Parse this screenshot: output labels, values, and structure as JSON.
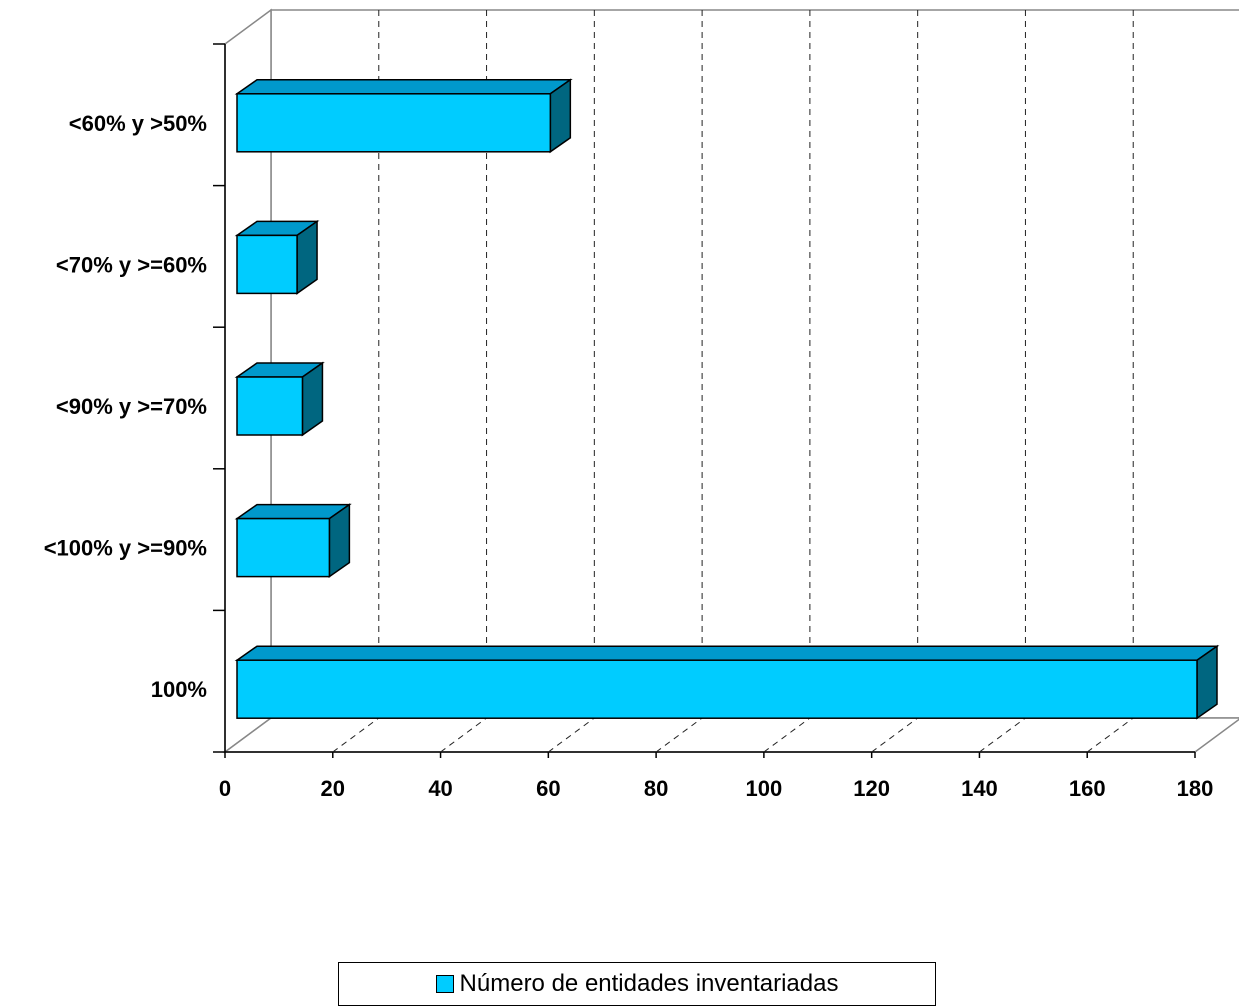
{
  "chart_data": {
    "type": "bar",
    "orientation": "horizontal",
    "style": "3d",
    "categories": [
      "100%",
      "<100% y >=90%",
      "<90% y >=70%",
      "<70% y >=60%",
      "<60% y >50%"
    ],
    "series": [
      {
        "name": "Número de entidades inventariadas",
        "values": [
          180,
          19,
          14,
          13,
          60
        ]
      }
    ],
    "xlim": [
      0,
      180
    ],
    "xticks": [
      "0",
      "20",
      "40",
      "60",
      "80",
      "100",
      "120",
      "140",
      "160",
      "180"
    ],
    "grid": true,
    "legend_position": "bottom",
    "colors": {
      "front": "#00CCFF",
      "top": "#0099CC",
      "side": "#006680"
    }
  },
  "legend": {
    "label": "Número de entidades inventariadas"
  }
}
